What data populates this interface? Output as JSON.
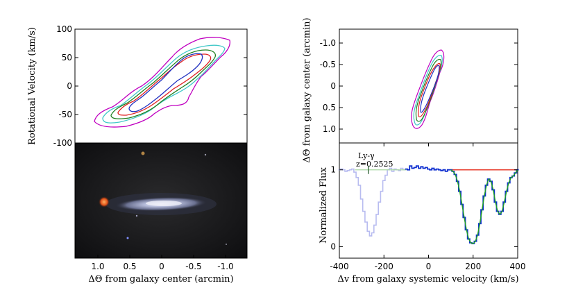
{
  "chart_data": [
    {
      "type": "contour",
      "panel": "position-velocity",
      "xlabel": "",
      "ylabel": "Rotational Velocity (km/s)",
      "xlim": [
        1.3,
        -1.3
      ],
      "ylim": [
        -100,
        100
      ],
      "yticks": [
        "100",
        "50",
        "0",
        "-50",
        "-100"
      ],
      "contour_colors": [
        "#c000c0",
        "#40c8c8",
        "#208020",
        "#e02020",
        "#2030c0"
      ],
      "grid": false
    },
    {
      "type": "image",
      "panel": "galaxy-image",
      "xlabel": "ΔΘ from galaxy center (arcmin)",
      "xticks": [
        "1.0",
        "0.5",
        "0",
        "-0.5",
        "-1.0"
      ],
      "xlim": [
        1.3,
        -1.3
      ]
    },
    {
      "type": "contour",
      "panel": "position-position",
      "ylabel": "ΔΘ from galaxy center (arcmin)",
      "yticks": [
        "-1.0",
        "-0.5",
        "0",
        "0.5",
        "1.0"
      ],
      "ylim": [
        -1.3,
        1.3
      ],
      "contour_colors": [
        "#c000c0",
        "#40c8c8",
        "#208020",
        "#e02020",
        "#2030c0"
      ],
      "grid": false
    },
    {
      "type": "line",
      "panel": "spectrum",
      "xlabel": "Δv from galaxy systemic velocity (km/s)",
      "ylabel": "Normalized Flux",
      "xlim": [
        -400,
        400
      ],
      "ylim": [
        -0.15,
        1.35
      ],
      "xticks": [
        "-400",
        "-200",
        "0",
        "200",
        "400"
      ],
      "yticks": [
        "1",
        "0"
      ],
      "annotation": {
        "label": "Ly-γ",
        "redshift": "z=0.2525",
        "velocity": -270
      },
      "colors": {
        "data": "#1030d0",
        "masked": "#b8bcf0",
        "model": "#20a020",
        "continuum": "#e84030"
      },
      "model_continuum": {
        "x_start": 100,
        "x_end": 400,
        "value": 1.0
      },
      "spectrum": [
        [
          -400,
          1.0
        ],
        [
          -390,
          1.01
        ],
        [
          -380,
          1.0
        ],
        [
          -370,
          0.98
        ],
        [
          -360,
          0.99
        ],
        [
          -350,
          1.0
        ],
        [
          -340,
          1.01
        ],
        [
          -330,
          0.97
        ],
        [
          -320,
          0.9
        ],
        [
          -310,
          0.8
        ],
        [
          -300,
          0.62
        ],
        [
          -290,
          0.46
        ],
        [
          -280,
          0.32
        ],
        [
          -270,
          0.2
        ],
        [
          -260,
          0.14
        ],
        [
          -250,
          0.18
        ],
        [
          -240,
          0.28
        ],
        [
          -230,
          0.42
        ],
        [
          -220,
          0.58
        ],
        [
          -210,
          0.72
        ],
        [
          -200,
          0.86
        ],
        [
          -190,
          0.93
        ],
        [
          -180,
          1.0
        ],
        [
          -170,
          1.02
        ],
        [
          -160,
          0.98
        ],
        [
          -150,
          1.01
        ],
        [
          -140,
          1.0
        ],
        [
          -130,
          0.99
        ],
        [
          -120,
          1.02
        ],
        [
          -110,
          1.0
        ],
        [
          -100,
          1.01
        ],
        [
          -90,
          1.0
        ],
        [
          -80,
          1.05
        ],
        [
          -70,
          1.02
        ],
        [
          -60,
          1.03
        ],
        [
          -50,
          1.05
        ],
        [
          -40,
          1.02
        ],
        [
          -30,
          1.04
        ],
        [
          -20,
          1.02
        ],
        [
          -10,
          1.03
        ],
        [
          0,
          1.01
        ],
        [
          10,
          1.0
        ],
        [
          20,
          1.02
        ],
        [
          30,
          1.0
        ],
        [
          40,
          1.01
        ],
        [
          50,
          1.0
        ],
        [
          60,
          0.99
        ],
        [
          70,
          1.0
        ],
        [
          80,
          0.98
        ],
        [
          90,
          1.0
        ],
        [
          100,
          1.0
        ],
        [
          110,
          0.98
        ],
        [
          120,
          0.94
        ],
        [
          130,
          0.85
        ],
        [
          140,
          0.72
        ],
        [
          150,
          0.55
        ],
        [
          160,
          0.38
        ],
        [
          170,
          0.22
        ],
        [
          180,
          0.1
        ],
        [
          190,
          0.05
        ],
        [
          200,
          0.04
        ],
        [
          210,
          0.07
        ],
        [
          220,
          0.15
        ],
        [
          230,
          0.3
        ],
        [
          240,
          0.48
        ],
        [
          250,
          0.66
        ],
        [
          260,
          0.8
        ],
        [
          270,
          0.88
        ],
        [
          280,
          0.85
        ],
        [
          290,
          0.74
        ],
        [
          300,
          0.58
        ],
        [
          310,
          0.46
        ],
        [
          320,
          0.42
        ],
        [
          330,
          0.46
        ],
        [
          340,
          0.58
        ],
        [
          350,
          0.72
        ],
        [
          360,
          0.83
        ],
        [
          370,
          0.9
        ],
        [
          380,
          0.92
        ],
        [
          390,
          0.96
        ],
        [
          400,
          1.0
        ]
      ]
    }
  ]
}
